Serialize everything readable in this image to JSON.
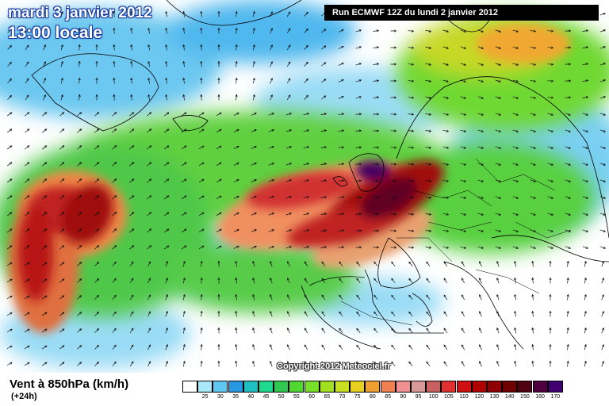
{
  "header": {
    "date": "mardi 3 janvier 2012",
    "time": "13:00 locale",
    "run": "Run ECMWF 12Z du lundi 2 janvier 2012"
  },
  "copyright": "Copyright 2012 Meteociel.fr",
  "footer": {
    "parameter": "Vent à 850hPa (km/h)",
    "lead_time": "(+24h)"
  },
  "legend": {
    "levels": [
      {
        "label": "",
        "color": "#ffffff"
      },
      {
        "label": "25",
        "color": "#a8e8f8"
      },
      {
        "label": "30",
        "color": "#60c8f0"
      },
      {
        "label": "35",
        "color": "#2898e0"
      },
      {
        "label": "40",
        "color": "#20c0c0"
      },
      {
        "label": "45",
        "color": "#20d890"
      },
      {
        "label": "50",
        "color": "#30c850"
      },
      {
        "label": "55",
        "color": "#50d830"
      },
      {
        "label": "60",
        "color": "#78e028"
      },
      {
        "label": "65",
        "color": "#a0e020"
      },
      {
        "label": "70",
        "color": "#c8e020"
      },
      {
        "label": "75",
        "color": "#e8d020"
      },
      {
        "label": "80",
        "color": "#f0a030"
      },
      {
        "label": "85",
        "color": "#f08050"
      },
      {
        "label": "90",
        "color": "#f09090"
      },
      {
        "label": "95",
        "color": "#d89898"
      },
      {
        "label": "100",
        "color": "#c86060"
      },
      {
        "label": "105",
        "color": "#e03030"
      },
      {
        "label": "110",
        "color": "#d01010"
      },
      {
        "label": "120",
        "color": "#b00000"
      },
      {
        "label": "130",
        "color": "#900000"
      },
      {
        "label": "140",
        "color": "#700000"
      },
      {
        "label": "150",
        "color": "#500010"
      },
      {
        "label": "160",
        "color": "#500040"
      },
      {
        "label": "170",
        "color": "#400070"
      }
    ]
  },
  "colors": {
    "sea_bg": "#ffffff",
    "coastline": "#000000",
    "arrow": "#111111"
  }
}
